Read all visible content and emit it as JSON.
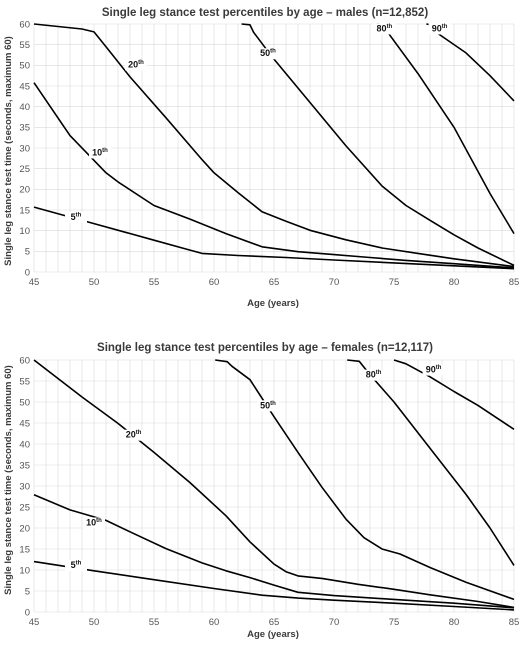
{
  "chart_data": [
    {
      "type": "line",
      "title": "Single leg stance test percentiles by age – males (n=12,852)",
      "xlabel": "Age (years)",
      "ylabel": "Single leg stance test time (seconds, maximum 60)",
      "xlim": [
        45,
        85
      ],
      "ylim": [
        0,
        60
      ],
      "xticks": [
        45,
        50,
        55,
        60,
        65,
        70,
        75,
        80,
        85
      ],
      "yticks": [
        0,
        5,
        10,
        15,
        20,
        25,
        30,
        35,
        40,
        45,
        50,
        55,
        60
      ],
      "grid": true,
      "series": [
        {
          "name": "5th",
          "label_num": "5",
          "label_suffix": "th",
          "label_at": [
            48.5,
            12.6
          ],
          "x": [
            45,
            50,
            55,
            58,
            59,
            62,
            66,
            70,
            75,
            80,
            85
          ],
          "y": [
            15.7,
            11.7,
            7.7,
            5.3,
            4.5,
            4.0,
            3.5,
            2.9,
            2.2,
            1.5,
            0.8
          ]
        },
        {
          "name": "10th",
          "label_num": "10",
          "label_suffix": "th",
          "label_at": [
            50.5,
            28.2
          ],
          "x": [
            45,
            48,
            51,
            52,
            55,
            58,
            61,
            64,
            67,
            70,
            73,
            76,
            80,
            85
          ],
          "y": [
            45.8,
            33.0,
            24.0,
            21.8,
            16.1,
            12.8,
            9.3,
            6.1,
            4.9,
            4.2,
            3.5,
            2.8,
            2.0,
            1.0
          ]
        },
        {
          "name": "20th",
          "label_num": "20",
          "label_suffix": "th",
          "label_at": [
            53.5,
            49.5
          ],
          "x": [
            45,
            49,
            50,
            51,
            53,
            56,
            59,
            60,
            62,
            64,
            66,
            68,
            71,
            74,
            77,
            80,
            85
          ],
          "y": [
            60,
            58.8,
            58.1,
            54.5,
            47.2,
            37.3,
            27.2,
            24.0,
            19.2,
            14.6,
            12.3,
            10.1,
            7.8,
            5.8,
            4.5,
            3.2,
            1.3
          ]
        },
        {
          "name": "50th",
          "label_num": "50",
          "label_suffix": "th",
          "label_at": [
            64.5,
            52.2
          ],
          "x": [
            62.3,
            63.0,
            63.3,
            64.8,
            68.0,
            71.0,
            74.0,
            76.0,
            78.0,
            80.0,
            82.0,
            85.0
          ],
          "y": [
            60,
            59.8,
            58.0,
            52.2,
            41.0,
            30.5,
            20.8,
            16.1,
            12.5,
            9.0,
            5.8,
            1.6
          ]
        },
        {
          "name": "80th",
          "label_num": "80",
          "label_suffix": "th",
          "label_at": [
            74.2,
            58.2
          ],
          "x": [
            73.6,
            74.2,
            74.6,
            77.0,
            80.0,
            83.0,
            85.0
          ],
          "y": [
            60,
            59.8,
            57.5,
            48.0,
            35.0,
            19.0,
            9.3
          ]
        },
        {
          "name": "90th",
          "label_num": "90",
          "label_suffix": "th",
          "label_at": [
            78.8,
            58.2
          ],
          "x": [
            77.7,
            78.1,
            78.4,
            81.0,
            83.0,
            85.0
          ],
          "y": [
            60,
            59.8,
            58.2,
            53.0,
            47.5,
            41.4
          ]
        }
      ]
    },
    {
      "type": "line",
      "title": "Single leg stance test percentiles by age – females (n=12,117)",
      "xlabel": "Age (years)",
      "ylabel": "Single leg stance test time (seconds, maximum 60)",
      "xlim": [
        45,
        85
      ],
      "ylim": [
        0,
        60
      ],
      "xticks": [
        45,
        50,
        55,
        60,
        65,
        70,
        75,
        80,
        85
      ],
      "yticks": [
        0,
        5,
        10,
        15,
        20,
        25,
        30,
        35,
        40,
        45,
        50,
        55,
        60
      ],
      "grid": true,
      "series": [
        {
          "name": "5th",
          "label_num": "5",
          "label_suffix": "th",
          "label_at": [
            48.5,
            10.5
          ],
          "x": [
            45,
            50,
            55,
            60,
            64,
            67,
            70,
            75,
            80,
            85
          ],
          "y": [
            12.0,
            9.8,
            7.7,
            5.6,
            4.0,
            3.3,
            2.8,
            2.1,
            1.3,
            0.5
          ]
        },
        {
          "name": "10th",
          "label_num": "10",
          "label_suffix": "th",
          "label_at": [
            50.0,
            20.6
          ],
          "x": [
            45,
            48,
            51,
            53,
            56,
            59,
            61,
            63,
            65,
            67,
            70,
            75,
            80,
            85
          ],
          "y": [
            27.9,
            24.3,
            21.8,
            19.1,
            15.1,
            11.7,
            9.8,
            8.2,
            6.4,
            4.7,
            3.9,
            3.0,
            2.1,
            1.0
          ]
        },
        {
          "name": "20th",
          "label_num": "20",
          "label_suffix": "th",
          "label_at": [
            53.3,
            41.5
          ],
          "x": [
            45,
            49,
            52,
            55,
            58,
            61,
            63,
            65,
            66,
            67,
            69,
            72,
            75,
            78,
            82,
            85
          ],
          "y": [
            60,
            51.2,
            44.9,
            38.0,
            30.8,
            22.9,
            16.7,
            11.4,
            9.6,
            8.6,
            8.0,
            6.6,
            5.4,
            4.1,
            2.5,
            1.1
          ]
        },
        {
          "name": "50th",
          "label_num": "50",
          "label_suffix": "th",
          "label_at": [
            64.5,
            48.5
          ],
          "x": [
            60.1,
            61.1,
            61.5,
            63.0,
            65.0,
            67.0,
            69.0,
            71.0,
            72.5,
            74.0,
            75.5,
            78.0,
            81.0,
            85.0
          ],
          "y": [
            60,
            59.6,
            58.5,
            55.3,
            46.5,
            38.0,
            29.7,
            22.1,
            17.7,
            15.0,
            13.8,
            10.6,
            7.1,
            3.0
          ]
        },
        {
          "name": "80th",
          "label_num": "80",
          "label_suffix": "th",
          "label_at": [
            73.3,
            55.8
          ],
          "x": [
            71.1,
            72.1,
            73.0,
            75.0,
            78.0,
            81.0,
            83.0,
            85.0
          ],
          "y": [
            60,
            59.7,
            56.5,
            50.0,
            39.0,
            28.0,
            20.0,
            11.1
          ]
        },
        {
          "name": "90th",
          "label_num": "90",
          "label_suffix": "th",
          "label_at": [
            78.3,
            57.0
          ],
          "x": [
            75.0,
            76.0,
            78.0,
            80.0,
            82.0,
            85.0
          ],
          "y": [
            60,
            59.1,
            56.0,
            52.5,
            49.2,
            43.5
          ]
        }
      ]
    }
  ]
}
